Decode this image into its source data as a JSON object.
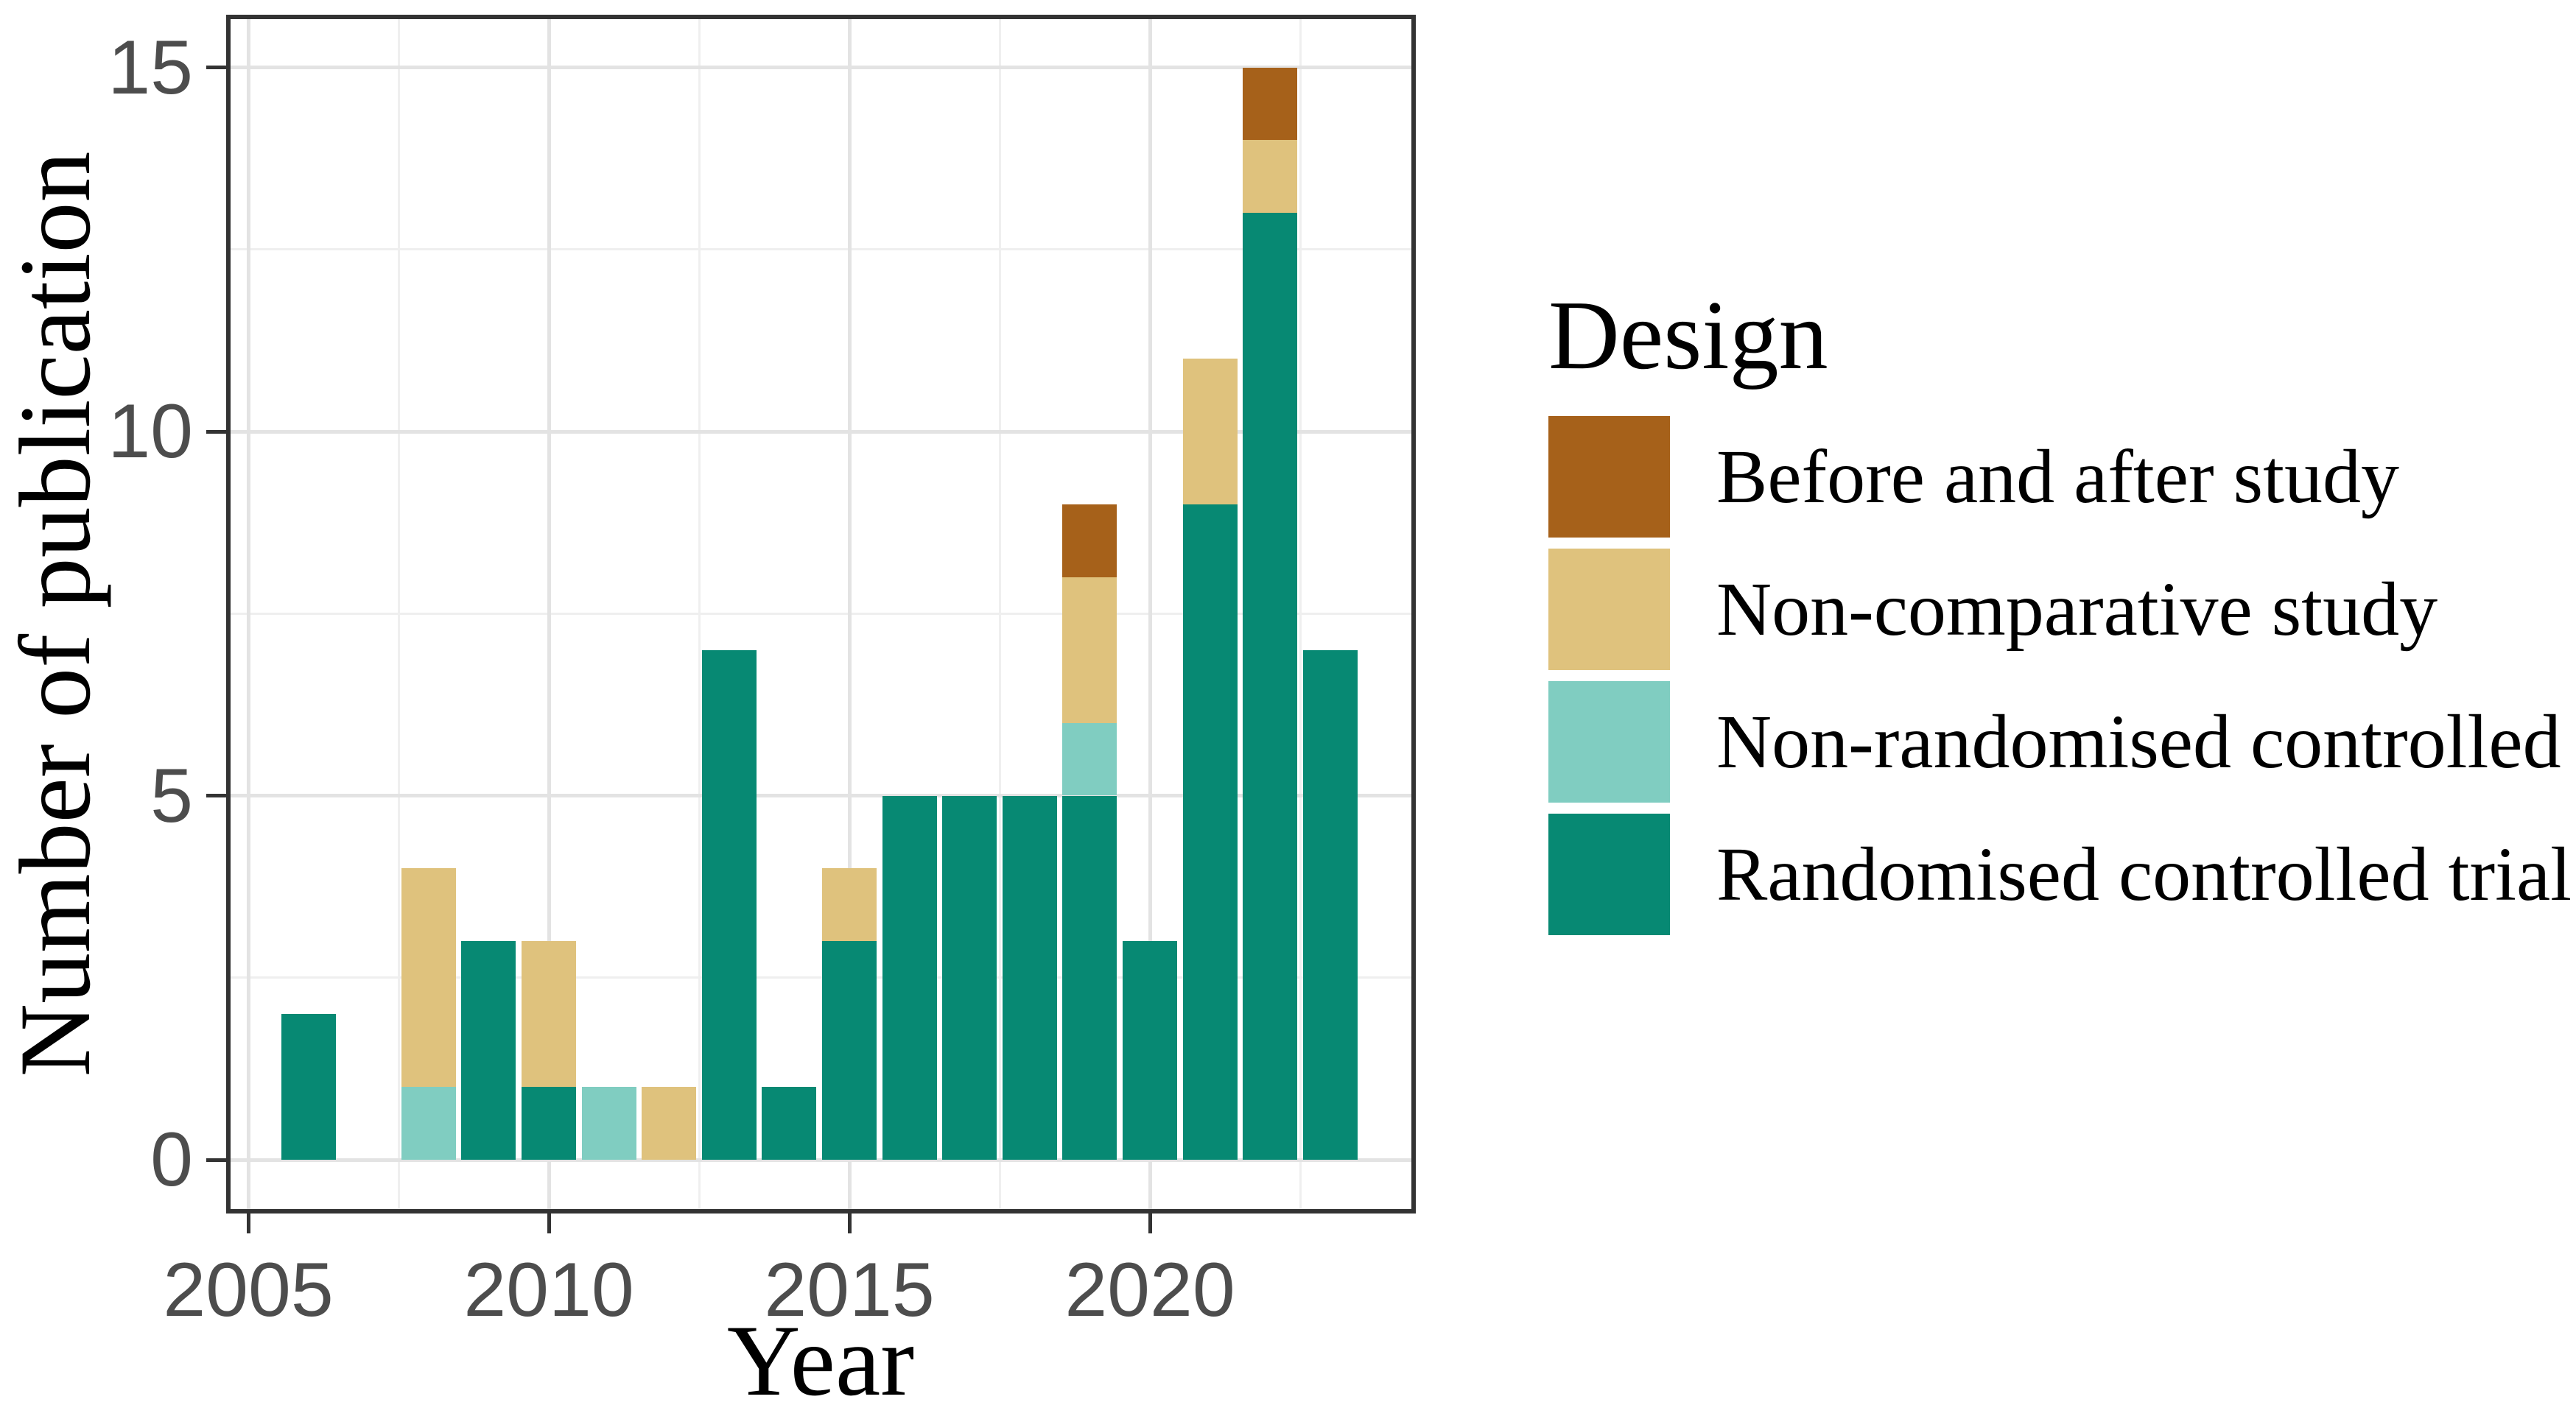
{
  "figure": {
    "type": "stacked-bar-chart",
    "background": "#ffffff"
  },
  "y_axis": {
    "title": "Number of publication",
    "tick_labels": [
      "0",
      "5",
      "10",
      "15"
    ],
    "tick_values": [
      0,
      5,
      10,
      15
    ],
    "minor_tick_values": [
      2.5,
      7.5,
      12.5
    ]
  },
  "x_axis": {
    "title": "Year",
    "tick_labels": [
      "2005",
      "2010",
      "2015",
      "2020"
    ],
    "tick_values": [
      2005,
      2010,
      2015,
      2020
    ],
    "minor_tick_values": [
      2007.5,
      2012.5,
      2017.5,
      2022.5
    ]
  },
  "legend": {
    "title": "Design",
    "position": "right",
    "items": [
      {
        "label": "Before and after study",
        "color": "#A6611A"
      },
      {
        "label": "Non-comparative study",
        "color": "#DFC27D"
      },
      {
        "label": "Non-randomised controlled trial",
        "color": "#80CDC1"
      },
      {
        "label": "Randomised controlled trial",
        "color": "#078973"
      }
    ]
  },
  "colors": {
    "panel_border": "#333333",
    "grid_major": "#e3e3e3",
    "grid_minor": "#efefef",
    "tick_mark": "#333333",
    "tick_text": "#4d4d4d",
    "title_text": "#000000"
  },
  "chart_data": {
    "type": "bar",
    "stacked": true,
    "title": "",
    "xlabel": "Year",
    "ylabel": "Number of publication",
    "x": [
      2006,
      2007,
      2008,
      2009,
      2010,
      2011,
      2012,
      2013,
      2014,
      2015,
      2016,
      2017,
      2018,
      2019,
      2020,
      2021,
      2022,
      2023
    ],
    "series": [
      {
        "name": "Randomised controlled trial",
        "color": "#078973",
        "values": [
          2,
          0,
          0,
          3,
          1,
          0,
          0,
          7,
          1,
          3,
          5,
          5,
          5,
          5,
          3,
          9,
          13,
          7
        ]
      },
      {
        "name": "Non-randomised controlled trial",
        "color": "#80CDC1",
        "values": [
          0,
          0,
          1,
          0,
          0,
          1,
          0,
          0,
          0,
          0,
          0,
          0,
          0,
          1,
          0,
          0,
          0,
          0
        ]
      },
      {
        "name": "Non-comparative study",
        "color": "#DFC27D",
        "values": [
          0,
          0,
          3,
          0,
          2,
          0,
          1,
          0,
          0,
          1,
          0,
          0,
          0,
          2,
          0,
          2,
          1,
          0
        ]
      },
      {
        "name": "Before and after study",
        "color": "#A6611A",
        "values": [
          0,
          0,
          0,
          0,
          0,
          0,
          0,
          0,
          0,
          0,
          0,
          0,
          0,
          1,
          0,
          0,
          1,
          0
        ]
      }
    ],
    "totals": [
      2,
      0,
      4,
      3,
      3,
      1,
      1,
      7,
      1,
      4,
      5,
      5,
      5,
      9,
      3,
      11,
      15,
      7
    ],
    "xlim": [
      2004.6,
      2024.4
    ],
    "ylim": [
      0,
      15.7
    ],
    "grid": true,
    "legend_position": "right"
  }
}
